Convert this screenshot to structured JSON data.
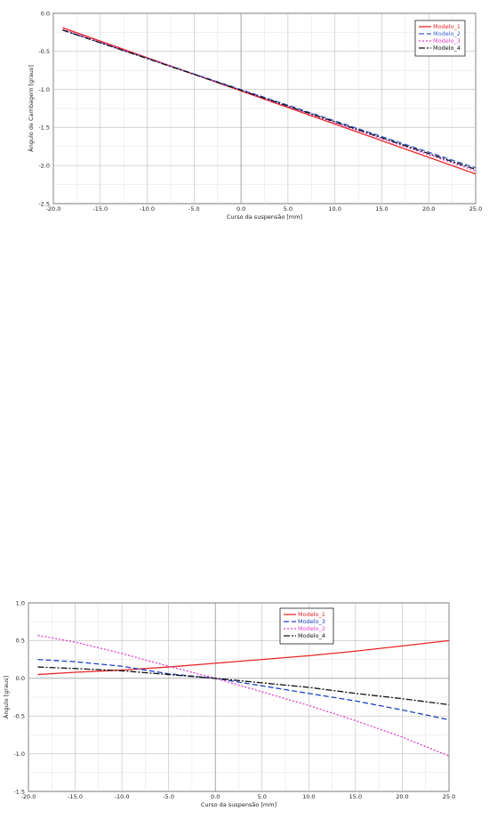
{
  "chart_data": [
    {
      "type": "line",
      "title": "",
      "xlabel": "Curso da suspensão [mm]",
      "ylabel": "Ângulo de Cambagem [graus]",
      "xlim": [
        -20,
        25
      ],
      "ylim": [
        -2.5,
        0
      ],
      "xticks": [
        -20,
        -15,
        -10,
        -5,
        0,
        5,
        10,
        15,
        20,
        25
      ],
      "xtick_labels": [
        "-20.0",
        "-15.0",
        "-10.0",
        "-5.0",
        "0.0",
        "5.0",
        "10.0",
        "15.0",
        "20.0",
        "25.0"
      ],
      "yticks": [
        0,
        -0.5,
        -1,
        -1.5,
        -2,
        -2.5
      ],
      "ytick_labels": [
        "0.0",
        "-0.5",
        "-1.0",
        "-1.5",
        "-2.0",
        "-2.5"
      ],
      "grid": true,
      "legend_position": "top-right",
      "series": [
        {
          "name": "Modelo_1",
          "color": "#e8262a",
          "dash": "solid",
          "x": [
            -19,
            25
          ],
          "y": [
            -0.19,
            -2.11
          ]
        },
        {
          "name": "Modelo_2",
          "color": "#3a5fcd",
          "dash": "dashed",
          "x": [
            -19,
            25
          ],
          "y": [
            -0.22,
            -2.03
          ]
        },
        {
          "name": "Modelo_3",
          "color": "#e23fc9",
          "dash": "dotted",
          "x": [
            -19,
            25
          ],
          "y": [
            -0.21,
            -2.07
          ]
        },
        {
          "name": "Modelo_4",
          "color": "#111111",
          "dash": "dashdot",
          "x": [
            -19,
            25
          ],
          "y": [
            -0.22,
            -2.05
          ]
        }
      ]
    },
    {
      "type": "line",
      "title": "",
      "xlabel": "Curso da suspensão [mm]",
      "ylabel": "Ângulo [graus]",
      "xlim": [
        -20,
        25
      ],
      "ylim": [
        -1.5,
        1
      ],
      "xticks": [
        -20,
        -15,
        -10,
        -5,
        0,
        5,
        10,
        15,
        20,
        25
      ],
      "xtick_labels": [
        "-20.0",
        "-15.0",
        "-10.0",
        "-5.0",
        "0.0",
        "5.0",
        "10.0",
        "15.0",
        "20.0",
        "25.0"
      ],
      "yticks": [
        1,
        0.5,
        0,
        -0.5,
        -1,
        -1.5
      ],
      "ytick_labels": [
        "1.0",
        "0.5",
        "0.0",
        "-0.5",
        "-1.0",
        "-1.5"
      ],
      "grid": true,
      "legend_position": "top-center",
      "series": [
        {
          "name": "Modelo_1",
          "color": "#e8262a",
          "dash": "solid",
          "x": [
            -19,
            -15,
            -10,
            -5,
            0,
            5,
            10,
            15,
            20,
            25
          ],
          "y": [
            0.05,
            0.08,
            0.11,
            0.15,
            0.2,
            0.25,
            0.3,
            0.36,
            0.43,
            0.5
          ]
        },
        {
          "name": "Modelo_3",
          "color": "#2040c0",
          "dash": "dashed",
          "x": [
            -19,
            -15,
            -10,
            -5,
            0,
            5,
            10,
            15,
            20,
            25
          ],
          "y": [
            0.25,
            0.22,
            0.16,
            0.06,
            0.0,
            -0.1,
            -0.2,
            -0.3,
            -0.42,
            -0.55
          ]
        },
        {
          "name": "Modelo_2",
          "color": "#e23fc9",
          "dash": "dotted",
          "x": [
            -19,
            -15,
            -10,
            -5,
            0,
            5,
            10,
            15,
            20,
            25
          ],
          "y": [
            0.57,
            0.48,
            0.33,
            0.16,
            0.0,
            -0.18,
            -0.36,
            -0.56,
            -0.78,
            -1.03
          ]
        },
        {
          "name": "Modelo_4",
          "color": "#111111",
          "dash": "dashdot",
          "x": [
            -19,
            -15,
            -10,
            -5,
            0,
            5,
            10,
            15,
            20,
            25
          ],
          "y": [
            0.15,
            0.13,
            0.1,
            0.05,
            0.0,
            -0.06,
            -0.12,
            -0.2,
            -0.27,
            -0.35
          ]
        }
      ]
    }
  ]
}
